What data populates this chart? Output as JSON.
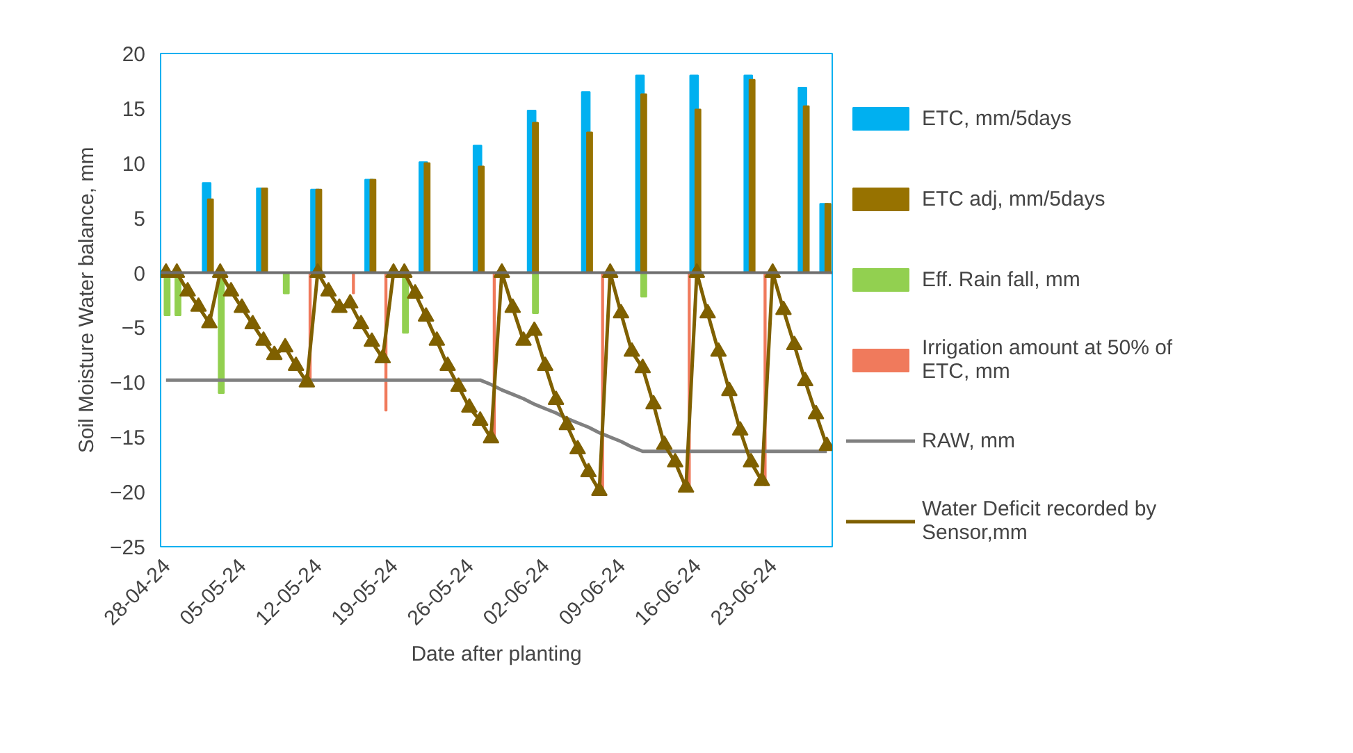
{
  "chart_data": {
    "type": "bar",
    "xlabel": "Date after planting",
    "ylabel": "Soil Moisture Water balance, mm",
    "categories": [
      "28-04-24",
      null,
      null,
      null,
      null,
      null,
      null,
      "05-05-24",
      null,
      null,
      null,
      null,
      null,
      null,
      "12-05-24",
      null,
      null,
      null,
      null,
      null,
      null,
      "19-05-24",
      null,
      null,
      null,
      null,
      null,
      null,
      "26-05-24",
      null,
      null,
      null,
      null,
      null,
      null,
      "02-06-24",
      null,
      null,
      null,
      null,
      null,
      null,
      "09-06-24",
      null,
      null,
      null,
      null,
      null,
      null,
      "16-06-24",
      null,
      null,
      null,
      null,
      null,
      null,
      "23-06-24",
      null,
      null,
      null,
      null,
      null
    ],
    "ylim": [
      -25,
      20
    ],
    "yticks": [
      -25,
      -20,
      -15,
      -10,
      -5,
      0,
      5,
      10,
      15,
      20
    ],
    "grid": false,
    "legend": "right",
    "ref_lines": [
      {
        "axis": "y",
        "value": 0,
        "color": "#6e6e6e"
      }
    ],
    "series": [
      {
        "name": "ETC, mm/5days",
        "color": "#00b0f0",
        "values": [
          null,
          null,
          null,
          null,
          8.2,
          null,
          null,
          null,
          null,
          7.7,
          null,
          null,
          null,
          null,
          7.6,
          null,
          null,
          null,
          null,
          8.5,
          null,
          null,
          null,
          null,
          10.1,
          null,
          null,
          null,
          null,
          11.6,
          null,
          null,
          null,
          null,
          14.8,
          null,
          null,
          null,
          null,
          16.5,
          null,
          null,
          null,
          null,
          18.0,
          null,
          null,
          null,
          null,
          18.0,
          null,
          null,
          null,
          null,
          18.0,
          null,
          null,
          null,
          null,
          16.9,
          null,
          6.3
        ]
      },
      {
        "name": "ETC adj, mm/5days",
        "color": "#977200",
        "values": [
          null,
          null,
          null,
          null,
          6.7,
          null,
          null,
          null,
          null,
          7.7,
          null,
          null,
          null,
          null,
          7.6,
          null,
          null,
          null,
          null,
          8.5,
          null,
          null,
          null,
          null,
          10.0,
          null,
          null,
          null,
          null,
          9.7,
          null,
          null,
          null,
          null,
          13.7,
          null,
          null,
          null,
          null,
          12.8,
          null,
          null,
          null,
          null,
          16.3,
          null,
          null,
          null,
          null,
          14.9,
          null,
          null,
          null,
          null,
          17.6,
          null,
          null,
          null,
          null,
          15.2,
          null,
          6.3
        ]
      },
      {
        "name": "Eff. Rain fall, mm",
        "color": "#92d050",
        "values": [
          -3.9,
          -3.9,
          null,
          null,
          null,
          -11.0,
          null,
          null,
          null,
          null,
          null,
          -1.9,
          null,
          null,
          null,
          null,
          null,
          null,
          null,
          null,
          null,
          null,
          -5.5,
          null,
          null,
          null,
          null,
          null,
          null,
          null,
          null,
          null,
          null,
          null,
          -3.7,
          null,
          null,
          null,
          null,
          null,
          null,
          null,
          null,
          null,
          -2.2,
          null,
          null,
          null,
          null,
          null,
          null,
          null,
          null,
          null,
          null,
          null,
          null,
          null,
          null,
          null,
          null,
          null
        ]
      },
      {
        "name": "Irrigation amount at 50% of ETC, mm",
        "color": "#f07a5c",
        "values": [
          null,
          null,
          null,
          null,
          null,
          null,
          null,
          null,
          null,
          null,
          null,
          null,
          null,
          -9.8,
          null,
          null,
          null,
          -1.9,
          null,
          null,
          -12.6,
          null,
          null,
          null,
          null,
          null,
          null,
          null,
          null,
          null,
          -15.2,
          null,
          null,
          null,
          null,
          null,
          null,
          null,
          null,
          null,
          -19.8,
          null,
          null,
          null,
          null,
          null,
          null,
          null,
          -19.6,
          null,
          null,
          null,
          null,
          null,
          null,
          -19.4,
          null,
          null,
          null,
          null,
          null,
          null
        ]
      },
      {
        "name": "RAW, mm",
        "type": "line",
        "color": "#808080",
        "marker": "none",
        "values": [
          -9.8,
          -9.8,
          -9.8,
          -9.8,
          -9.8,
          -9.8,
          -9.8,
          -9.8,
          -9.8,
          -9.8,
          -9.8,
          -9.8,
          -9.8,
          -9.8,
          -9.8,
          -9.8,
          -9.8,
          -9.8,
          -9.8,
          -9.8,
          -9.8,
          -9.8,
          -9.8,
          -9.8,
          -9.8,
          -9.8,
          -9.8,
          -9.8,
          -9.8,
          -9.8,
          -10.2,
          -10.7,
          -11.1,
          -11.5,
          -12.0,
          -12.4,
          -12.8,
          -13.3,
          -13.7,
          -14.1,
          -14.6,
          -15.0,
          -15.4,
          -15.9,
          -16.3,
          -16.3,
          -16.3,
          -16.3,
          -16.3,
          -16.3,
          -16.3,
          -16.3,
          -16.3,
          -16.3,
          -16.3,
          -16.3,
          -16.3,
          -16.3,
          -16.3,
          -16.3,
          -16.3,
          -16.3
        ]
      },
      {
        "name": "Water Deficit recorded by Sensor,mm",
        "type": "line",
        "color": "#7f6000",
        "marker": "triangle",
        "values": [
          0,
          0,
          -1.7,
          -3.1,
          -4.6,
          0,
          -1.7,
          -3.2,
          -4.7,
          -6.2,
          -7.5,
          -6.8,
          -8.5,
          -10.0,
          0,
          -1.7,
          -3.2,
          -2.8,
          -4.7,
          -6.3,
          -7.8,
          0,
          0,
          -1.9,
          -4.0,
          -6.2,
          -8.5,
          -10.4,
          -12.3,
          -13.5,
          -15.1,
          0,
          -3.2,
          -6.2,
          -5.3,
          -8.5,
          -11.6,
          -13.9,
          -16.1,
          -18.2,
          -19.9,
          0,
          -3.7,
          -7.2,
          -8.7,
          -12.0,
          -15.7,
          -17.3,
          -19.6,
          0,
          -3.7,
          -7.2,
          -10.8,
          -14.4,
          -17.3,
          -19.0,
          0,
          -3.4,
          -6.6,
          -9.9,
          -12.9,
          -15.8
        ]
      }
    ]
  }
}
